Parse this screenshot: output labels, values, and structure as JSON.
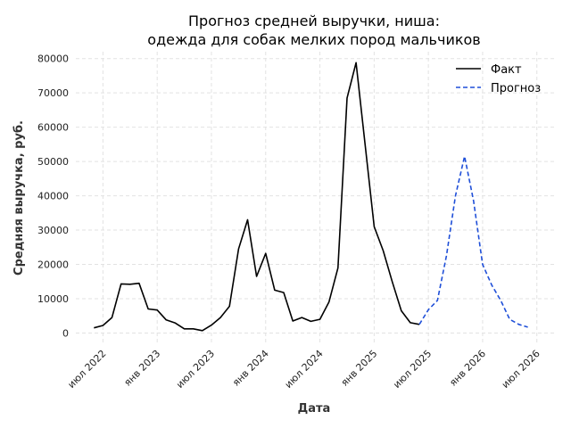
{
  "chart_data": {
    "type": "line",
    "title_lines": [
      "Прогноз средней выручки, ниша:",
      "одежда для собак мелких пород мальчиков"
    ],
    "xlabel": "Дата",
    "ylabel": "Средняя выручка, руб.",
    "ylim": [
      -3000,
      82000
    ],
    "yticks": [
      0,
      10000,
      20000,
      30000,
      40000,
      50000,
      60000,
      70000,
      80000
    ],
    "xlim": [
      "2022-04",
      "2026-09"
    ],
    "xticks": [
      {
        "date": "2022-07",
        "label": "июл 2022"
      },
      {
        "date": "2023-01",
        "label": "янв 2023"
      },
      {
        "date": "2023-07",
        "label": "июл 2023"
      },
      {
        "date": "2024-01",
        "label": "янв 2024"
      },
      {
        "date": "2024-07",
        "label": "июл 2024"
      },
      {
        "date": "2025-01",
        "label": "янв 2025"
      },
      {
        "date": "2025-07",
        "label": "июл 2025"
      },
      {
        "date": "2026-01",
        "label": "янв 2026"
      },
      {
        "date": "2026-07",
        "label": "июл 2026"
      }
    ],
    "grid": true,
    "legend_position": "top-right",
    "series": [
      {
        "name": "Факт",
        "color": "#000000",
        "style": "solid",
        "points": [
          [
            "2022-06",
            1500
          ],
          [
            "2022-07",
            2200
          ],
          [
            "2022-08",
            4500
          ],
          [
            "2022-09",
            14300
          ],
          [
            "2022-10",
            14200
          ],
          [
            "2022-11",
            14500
          ],
          [
            "2022-12",
            7000
          ],
          [
            "2023-01",
            6700
          ],
          [
            "2023-02",
            3800
          ],
          [
            "2023-03",
            2900
          ],
          [
            "2023-04",
            1200
          ],
          [
            "2023-05",
            1200
          ],
          [
            "2023-06",
            700
          ],
          [
            "2023-07",
            2300
          ],
          [
            "2023-08",
            4500
          ],
          [
            "2023-09",
            7800
          ],
          [
            "2023-10",
            24500
          ],
          [
            "2023-11",
            33000
          ],
          [
            "2023-12",
            16500
          ],
          [
            "2024-01",
            23200
          ],
          [
            "2024-02",
            12500
          ],
          [
            "2024-03",
            11800
          ],
          [
            "2024-04",
            3500
          ],
          [
            "2024-05",
            4500
          ],
          [
            "2024-06",
            3400
          ],
          [
            "2024-07",
            4000
          ],
          [
            "2024-08",
            9000
          ],
          [
            "2024-09",
            19000
          ],
          [
            "2024-10",
            68500
          ],
          [
            "2024-11",
            78800
          ],
          [
            "2024-12",
            55000
          ],
          [
            "2025-01",
            31000
          ],
          [
            "2025-02",
            24000
          ],
          [
            "2025-03",
            15000
          ],
          [
            "2025-04",
            6500
          ],
          [
            "2025-05",
            3000
          ],
          [
            "2025-06",
            2500
          ]
        ]
      },
      {
        "name": "Прогноз",
        "color": "#1f4fd8",
        "style": "dashed",
        "points": [
          [
            "2025-06",
            2500
          ],
          [
            "2025-07",
            6800
          ],
          [
            "2025-08",
            9500
          ],
          [
            "2025-09",
            22500
          ],
          [
            "2025-10",
            40000
          ],
          [
            "2025-11",
            51500
          ],
          [
            "2025-12",
            38500
          ],
          [
            "2026-01",
            20000
          ],
          [
            "2026-02",
            14000
          ],
          [
            "2026-03",
            9500
          ],
          [
            "2026-04",
            4000
          ],
          [
            "2026-05",
            2500
          ],
          [
            "2026-06",
            1700
          ]
        ]
      }
    ]
  }
}
